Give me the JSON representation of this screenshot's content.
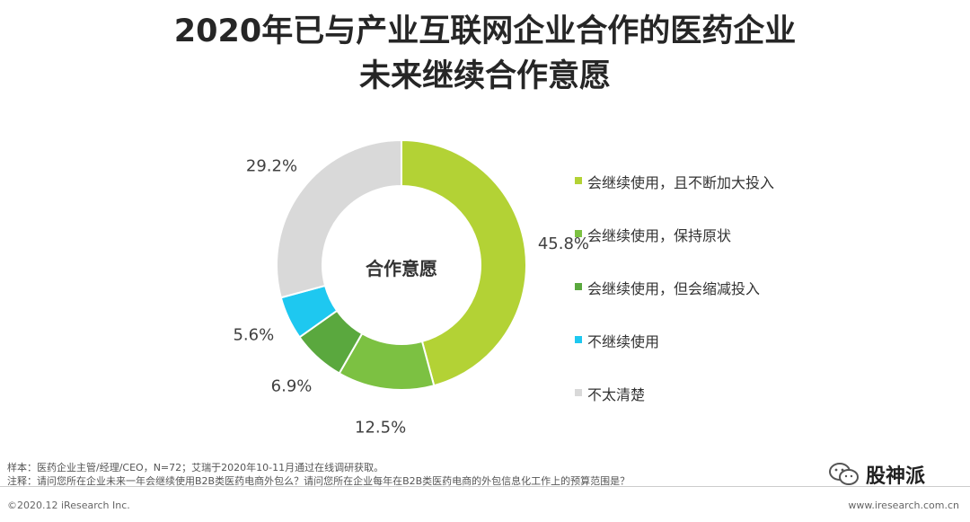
{
  "title": {
    "line1": "2020年已与产业互联网企业合作的医药企业",
    "line2": "未来继续合作意愿"
  },
  "colors": {
    "s1": "#b3d235",
    "s2": "#7cc142",
    "s3": "#5aa83e",
    "s4": "#1ec8f0",
    "s5": "#d9d9d9"
  },
  "chart_data": {
    "type": "pie",
    "donut": true,
    "center_label": "合作意愿",
    "categories": [
      "会继续使用，且不断加大投入",
      "会继续使用，保持原状",
      "会继续使用，但会缩减投入",
      "不继续使用",
      "不太清楚"
    ],
    "values": [
      45.8,
      12.5,
      6.9,
      5.6,
      29.2
    ],
    "labels": [
      "45.8%",
      "12.5%",
      "6.9%",
      "5.6%",
      "29.2%"
    ],
    "legend_position": "right"
  },
  "footer": {
    "sample": "样本：医药企业主管/经理/CEO，N=72；艾瑞于2020年10-11月通过在线调研获取。",
    "note": "注释：请问您所在企业未来一年会继续使用B2B类医药电商外包么？请问您所在企业每年在B2B类医药电商的外包信息化工作上的预算范围是？",
    "copyright": "©2020.12 iResearch Inc.",
    "site": "www.iresearch.com.cn",
    "brand": "股神派"
  }
}
